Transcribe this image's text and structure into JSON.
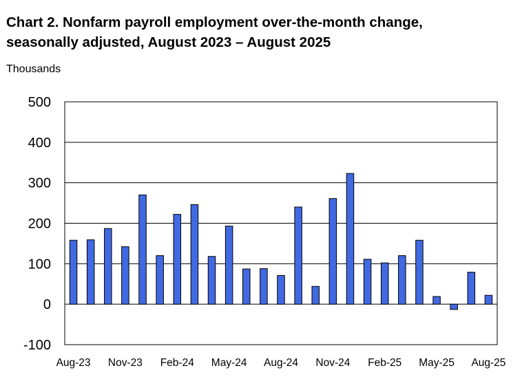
{
  "chart_data": {
    "type": "bar",
    "title_lines": [
      "Chart 2. Nonfarm payroll employment over-the-month change,",
      "seasonally adjusted, August 2023 – August 2025"
    ],
    "units_label": "Thousands",
    "ylim": [
      -100,
      500
    ],
    "yticks": [
      "-100",
      "0",
      "100",
      "200",
      "300",
      "400",
      "500"
    ],
    "ytick_values": [
      -100,
      0,
      100,
      200,
      300,
      400,
      500
    ],
    "grid": true,
    "legend": "none",
    "categories": [
      "Aug-23",
      "Sep-23",
      "Oct-23",
      "Nov-23",
      "Dec-23",
      "Jan-24",
      "Feb-24",
      "Mar-24",
      "Apr-24",
      "May-24",
      "Jun-24",
      "Jul-24",
      "Aug-24",
      "Sep-24",
      "Oct-24",
      "Nov-24",
      "Dec-24",
      "Jan-25",
      "Feb-25",
      "Mar-25",
      "Apr-25",
      "May-25",
      "Jun-25",
      "Jul-25",
      "Aug-25"
    ],
    "x_tick_labels": [
      "Aug-23",
      "Nov-23",
      "Feb-24",
      "May-24",
      "Aug-24",
      "Nov-24",
      "Feb-25",
      "May-25",
      "Aug-25"
    ],
    "x_tick_indices": [
      0,
      3,
      6,
      9,
      12,
      15,
      18,
      21,
      24
    ],
    "values": [
      158,
      159,
      187,
      142,
      270,
      120,
      222,
      246,
      118,
      193,
      87,
      88,
      71,
      240,
      44,
      261,
      323,
      111,
      102,
      120,
      158,
      19,
      -13,
      79,
      22
    ],
    "bar_color": "#4169E1"
  }
}
